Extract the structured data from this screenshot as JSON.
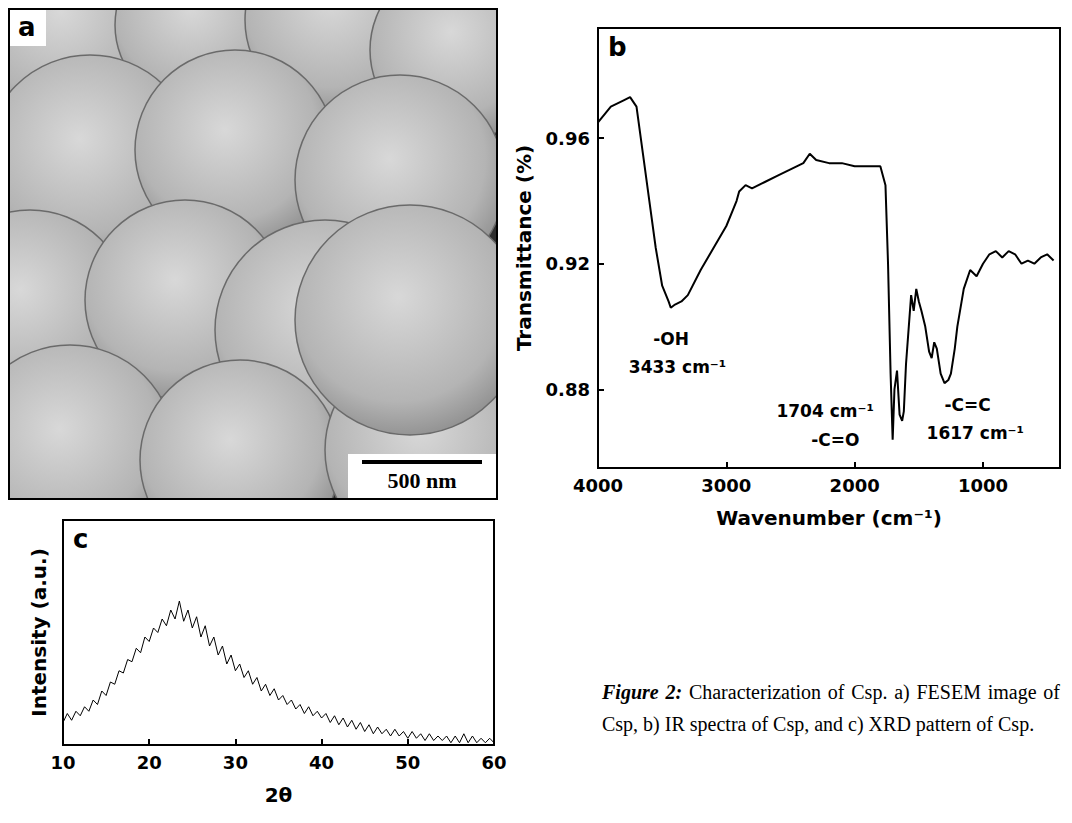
{
  "figure": {
    "caption": {
      "label": "Figure 2:",
      "text": "Characterization of Csp. a) FESEM image of Csp, b) IR spectra of Csp, and c) XRD pattern of Csp."
    },
    "image_panel": {
      "label": "a",
      "scale_bar": "500 nm"
    }
  },
  "chart_data": [
    {
      "type": "line",
      "title": "b",
      "x_label": "Wavenumber (cm⁻¹)",
      "y_label": "Transmittance (%)",
      "color": "#000000",
      "x": [
        4000,
        3900,
        3800,
        3750,
        3700,
        3650,
        3600,
        3550,
        3500,
        3450,
        3433,
        3400,
        3350,
        3300,
        3200,
        3100,
        3000,
        2950,
        2920,
        2900,
        2850,
        2800,
        2700,
        2600,
        2500,
        2400,
        2350,
        2300,
        2200,
        2100,
        2000,
        1900,
        1800,
        1760,
        1740,
        1720,
        1704,
        1690,
        1670,
        1650,
        1630,
        1617,
        1600,
        1560,
        1540,
        1520,
        1500,
        1480,
        1450,
        1420,
        1400,
        1380,
        1360,
        1330,
        1300,
        1270,
        1250,
        1220,
        1200,
        1150,
        1100,
        1050,
        1000,
        950,
        900,
        850,
        800,
        750,
        700,
        650,
        600,
        550,
        500,
        450
      ],
      "values": [
        0.965,
        0.97,
        0.972,
        0.973,
        0.97,
        0.955,
        0.94,
        0.925,
        0.913,
        0.908,
        0.906,
        0.907,
        0.908,
        0.91,
        0.918,
        0.925,
        0.932,
        0.937,
        0.94,
        0.943,
        0.945,
        0.944,
        0.946,
        0.948,
        0.95,
        0.952,
        0.955,
        0.953,
        0.952,
        0.952,
        0.951,
        0.951,
        0.951,
        0.945,
        0.92,
        0.885,
        0.864,
        0.88,
        0.886,
        0.872,
        0.87,
        0.873,
        0.888,
        0.91,
        0.905,
        0.912,
        0.908,
        0.905,
        0.9,
        0.892,
        0.89,
        0.895,
        0.893,
        0.885,
        0.882,
        0.883,
        0.885,
        0.893,
        0.9,
        0.912,
        0.918,
        0.916,
        0.92,
        0.923,
        0.924,
        0.922,
        0.924,
        0.923,
        0.92,
        0.921,
        0.92,
        0.922,
        0.923,
        0.921
      ],
      "xlim": [
        4000,
        400
      ],
      "ylim": [
        0.855,
        0.995
      ],
      "xticks": [
        4000,
        3000,
        2000,
        1000
      ],
      "yticks": [
        0.88,
        0.92,
        0.96
      ],
      "grid": false,
      "annotations": [
        {
          "text": "-OH",
          "x": 3430,
          "y": 0.896
        },
        {
          "text": "3433 cm⁻¹",
          "x": 3380,
          "y": 0.887
        },
        {
          "text": "1704 cm⁻¹",
          "x": 2230,
          "y": 0.873
        },
        {
          "text": "-C=O",
          "x": 2150,
          "y": 0.864
        },
        {
          "text": "-C=C",
          "x": 1120,
          "y": 0.875
        },
        {
          "text": "1617 cm⁻¹",
          "x": 1060,
          "y": 0.866
        }
      ]
    },
    {
      "type": "line",
      "title": "c",
      "x_label": "2θ",
      "y_label": "Intensity (a.u.)",
      "color": "#000000",
      "x": [
        10,
        10.5,
        11,
        11.5,
        12,
        12.5,
        13,
        13.5,
        14,
        14.5,
        15,
        15.5,
        16,
        16.5,
        17,
        17.5,
        18,
        18.5,
        19,
        19.5,
        20,
        20.5,
        21,
        21.5,
        22,
        22.5,
        23,
        23.5,
        24,
        24.5,
        25,
        25.5,
        26,
        26.5,
        27,
        27.5,
        28,
        28.5,
        29,
        29.5,
        30,
        30.5,
        31,
        31.5,
        32,
        32.5,
        33,
        33.5,
        34,
        34.5,
        35,
        35.5,
        36,
        36.5,
        37,
        37.5,
        38,
        38.5,
        39,
        39.5,
        40,
        40.5,
        41,
        41.5,
        42,
        42.5,
        43,
        43.5,
        44,
        44.5,
        45,
        45.5,
        46,
        46.5,
        47,
        47.5,
        48,
        48.5,
        49,
        49.5,
        50,
        50.5,
        51,
        51.5,
        52,
        52.5,
        53,
        53.5,
        54,
        54.5,
        55,
        55.5,
        56,
        56.5,
        57,
        57.5,
        58,
        58.5,
        59,
        59.5,
        60
      ],
      "values": [
        10,
        14,
        11,
        15,
        13,
        17,
        15,
        20,
        18,
        24,
        22,
        28,
        27,
        33,
        32,
        38,
        37,
        43,
        41,
        48,
        46,
        52,
        50,
        56,
        53,
        60,
        56,
        64,
        55,
        60,
        52,
        57,
        48,
        53,
        44,
        48,
        40,
        44,
        36,
        40,
        33,
        36,
        30,
        33,
        27,
        30,
        24,
        27,
        22,
        25,
        20,
        22,
        18,
        20,
        16,
        18,
        14,
        17,
        13,
        15,
        12,
        14,
        10,
        13,
        9,
        12,
        8,
        11,
        7,
        10,
        6,
        9,
        5,
        8,
        5,
        7,
        4,
        7,
        4,
        6,
        3,
        6,
        3,
        5,
        2,
        5,
        2,
        4,
        2,
        4,
        1,
        4,
        1,
        5,
        1,
        4,
        1,
        3,
        1,
        3,
        1
      ],
      "xlim": [
        10,
        60
      ],
      "ylim": [
        0,
        100
      ],
      "xticks": [
        10,
        20,
        30,
        40,
        50,
        60
      ],
      "grid": false,
      "tick_labels": "x"
    }
  ]
}
